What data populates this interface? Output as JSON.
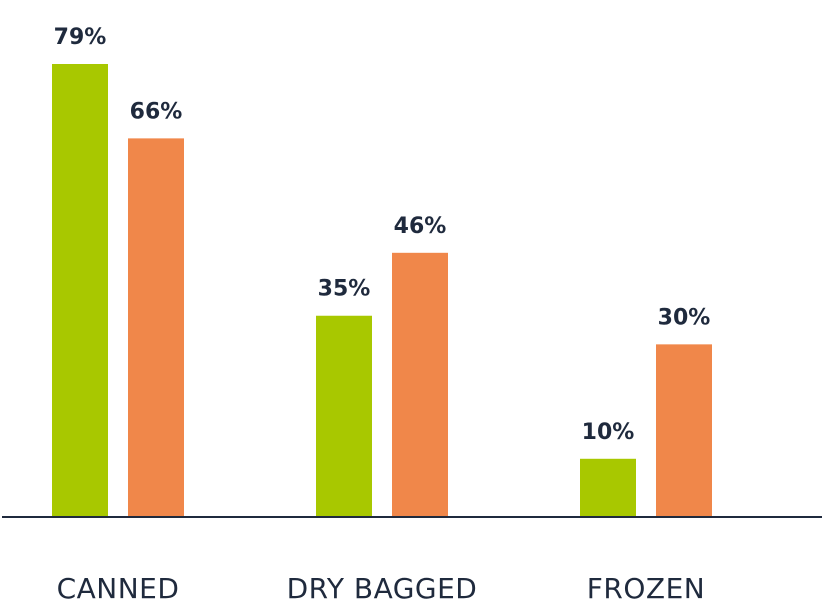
{
  "chart_data": {
    "type": "bar",
    "categories": [
      "CANNED",
      "DRY BAGGED",
      "FROZEN"
    ],
    "series": [
      {
        "color": "#a8c800",
        "values": [
          79,
          35,
          10
        ],
        "labels": [
          "79%",
          "35%",
          "10%"
        ]
      },
      {
        "color": "#f0874a",
        "values": [
          66,
          46,
          30
        ],
        "labels": [
          "66%",
          "46%",
          "30%"
        ]
      }
    ],
    "ylim": [
      0,
      79
    ],
    "grid": false,
    "axis_color": "#1f2a3d",
    "label_color": "#1f2a3d"
  }
}
